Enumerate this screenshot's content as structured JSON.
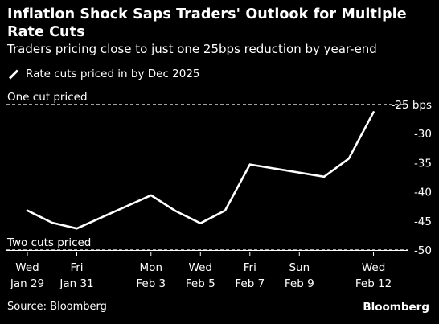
{
  "header": {
    "title": "Inflation Shock Saps Traders' Outlook for Multiple Rate Cuts",
    "subtitle": "Traders pricing close to just one 25bps reduction by year-end"
  },
  "footer": {
    "source": "Source: Bloomberg",
    "brand": "Bloomberg"
  },
  "colors": {
    "background": "#000000",
    "line": "#ffffff",
    "text": "#ffffff"
  },
  "chart_data": {
    "type": "line",
    "title": "Inflation Shock Saps Traders' Outlook for Multiple Rate Cuts",
    "subtitle": "Traders pricing close to just one 25bps reduction by year-end",
    "legend": "top-left",
    "grid": false,
    "series": [
      {
        "name": "Rate cuts priced in by Dec 2025",
        "x": [
          "2025-01-29",
          "2025-01-30",
          "2025-01-31",
          "2025-02-03",
          "2025-02-04",
          "2025-02-05",
          "2025-02-06",
          "2025-02-07",
          "2025-02-10",
          "2025-02-11",
          "2025-02-12"
        ],
        "values": [
          -43.2,
          -45.3,
          -46.3,
          -40.6,
          -43.3,
          -45.4,
          -43.2,
          -35.3,
          -37.4,
          -34.3,
          -26.3
        ]
      }
    ],
    "ylim": [
      -50,
      -25
    ],
    "yticks": [
      {
        "value": -25,
        "label": "-25 bps"
      },
      {
        "value": -30,
        "label": "-30"
      },
      {
        "value": -35,
        "label": "-35"
      },
      {
        "value": -40,
        "label": "-40"
      },
      {
        "value": -45,
        "label": "-45"
      },
      {
        "value": -50,
        "label": "-50"
      }
    ],
    "xticks": [
      {
        "date": "2025-01-29",
        "line1": "Wed",
        "line2": "Jan 29"
      },
      {
        "date": "2025-01-31",
        "line1": "Fri",
        "line2": "Jan 31"
      },
      {
        "date": "2025-02-03",
        "line1": "Mon",
        "line2": "Feb 3"
      },
      {
        "date": "2025-02-05",
        "line1": "Wed",
        "line2": "Feb 5"
      },
      {
        "date": "2025-02-07",
        "line1": "Fri",
        "line2": "Feb 7"
      },
      {
        "date": "2025-02-09",
        "line1": "Sun",
        "line2": "Feb 9"
      },
      {
        "date": "2025-02-12",
        "line1": "Wed",
        "line2": "Feb 12"
      }
    ],
    "reference_lines": [
      {
        "value": -25,
        "label": "One cut priced"
      },
      {
        "value": -50,
        "label": "Two cuts priced"
      }
    ]
  }
}
